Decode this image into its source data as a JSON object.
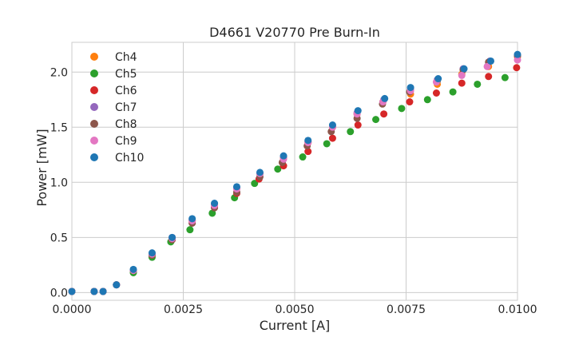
{
  "chart_data": {
    "type": "scatter",
    "title": "D4661 V20770 Pre Burn-In",
    "xlabel": "Current [A]",
    "ylabel": "Power [mW]",
    "xlim": [
      0.0,
      0.01
    ],
    "ylim": [
      -0.07,
      2.27
    ],
    "xticks": [
      0.0,
      0.0025,
      0.005,
      0.0075,
      0.01
    ],
    "xtick_labels": [
      "0.0000",
      "0.0025",
      "0.0050",
      "0.0075",
      "0.0100"
    ],
    "yticks": [
      0.0,
      0.5,
      1.0,
      1.5,
      2.0
    ],
    "ytick_labels": [
      "0.0",
      "0.5",
      "1.0",
      "1.5",
      "2.0"
    ],
    "grid": true,
    "legend_position": "top-left",
    "series": [
      {
        "name": "Ch4",
        "color": "#ff7f0e",
        "x": [
          0.0,
          0.0005,
          0.0007,
          0.001,
          0.00138,
          0.0018,
          0.00225,
          0.0027,
          0.0032,
          0.0037,
          0.00422,
          0.00475,
          0.0053,
          0.00585,
          0.0064,
          0.00698,
          0.0076,
          0.0082,
          0.00875,
          0.00935,
          0.01
        ],
        "y": [
          0.01,
          0.01,
          0.01,
          0.07,
          0.2,
          0.34,
          0.49,
          0.65,
          0.8,
          0.95,
          1.08,
          1.22,
          1.36,
          1.5,
          1.62,
          1.73,
          1.8,
          1.89,
          1.98,
          2.05,
          2.14
        ]
      },
      {
        "name": "Ch5",
        "color": "#2ca02c",
        "x": [
          0.0,
          0.0005,
          0.0007,
          0.001,
          0.00138,
          0.0018,
          0.00222,
          0.00265,
          0.00315,
          0.00365,
          0.0041,
          0.00462,
          0.00518,
          0.00572,
          0.00625,
          0.00682,
          0.0074,
          0.00798,
          0.00855,
          0.0091,
          0.00972
        ],
        "y": [
          0.01,
          0.01,
          0.01,
          0.07,
          0.18,
          0.32,
          0.46,
          0.57,
          0.72,
          0.86,
          0.99,
          1.12,
          1.23,
          1.35,
          1.46,
          1.57,
          1.67,
          1.75,
          1.82,
          1.89,
          1.95
        ]
      },
      {
        "name": "Ch6",
        "color": "#d62728",
        "x": [
          0.0,
          0.0005,
          0.0007,
          0.001,
          0.00138,
          0.0018,
          0.00225,
          0.0027,
          0.0032,
          0.0037,
          0.0042,
          0.00475,
          0.0053,
          0.00585,
          0.00642,
          0.007,
          0.00758,
          0.00818,
          0.00875,
          0.00935,
          0.00998
        ],
        "y": [
          0.01,
          0.01,
          0.01,
          0.07,
          0.2,
          0.34,
          0.48,
          0.63,
          0.77,
          0.9,
          1.03,
          1.15,
          1.28,
          1.4,
          1.52,
          1.62,
          1.73,
          1.81,
          1.9,
          1.96,
          2.04
        ]
      },
      {
        "name": "Ch7",
        "color": "#9467bd",
        "x": [
          0.0,
          0.0005,
          0.0007,
          0.001,
          0.00138,
          0.0018,
          0.00225,
          0.0027,
          0.0032,
          0.0037,
          0.00422,
          0.00475,
          0.0053,
          0.00585,
          0.0064,
          0.007,
          0.0076,
          0.0082,
          0.00878,
          0.00938,
          0.01
        ],
        "y": [
          0.01,
          0.01,
          0.01,
          0.07,
          0.2,
          0.35,
          0.5,
          0.66,
          0.8,
          0.95,
          1.08,
          1.23,
          1.37,
          1.51,
          1.63,
          1.75,
          1.85,
          1.93,
          2.03,
          2.1,
          2.15
        ]
      },
      {
        "name": "Ch8",
        "color": "#8c564b",
        "x": [
          0.0,
          0.0005,
          0.0007,
          0.001,
          0.00138,
          0.0018,
          0.00225,
          0.0027,
          0.0032,
          0.0037,
          0.00422,
          0.00472,
          0.00528,
          0.00582,
          0.0064,
          0.00697,
          0.00758,
          0.0082,
          0.00878,
          0.00935,
          0.01
        ],
        "y": [
          0.01,
          0.01,
          0.01,
          0.07,
          0.2,
          0.34,
          0.48,
          0.63,
          0.77,
          0.91,
          1.05,
          1.18,
          1.33,
          1.46,
          1.58,
          1.71,
          1.82,
          1.92,
          2.02,
          2.09,
          2.15
        ]
      },
      {
        "name": "Ch9",
        "color": "#e377c2",
        "x": [
          0.0,
          0.0005,
          0.0007,
          0.001,
          0.00138,
          0.0018,
          0.00225,
          0.0027,
          0.0032,
          0.0037,
          0.00422,
          0.00475,
          0.0053,
          0.00585,
          0.0064,
          0.00698,
          0.0076,
          0.00818,
          0.00875,
          0.00932,
          0.01
        ],
        "y": [
          0.01,
          0.01,
          0.01,
          0.07,
          0.2,
          0.35,
          0.49,
          0.65,
          0.79,
          0.94,
          1.08,
          1.21,
          1.36,
          1.5,
          1.62,
          1.73,
          1.83,
          1.91,
          1.97,
          2.05,
          2.11
        ]
      },
      {
        "name": "Ch10",
        "color": "#1f77b4",
        "x": [
          0.0,
          0.0005,
          0.0007,
          0.001,
          0.00138,
          0.0018,
          0.00225,
          0.0027,
          0.0032,
          0.0037,
          0.00422,
          0.00475,
          0.0053,
          0.00585,
          0.00642,
          0.00702,
          0.0076,
          0.00822,
          0.0088,
          0.0094,
          0.01
        ],
        "y": [
          0.01,
          0.01,
          0.01,
          0.07,
          0.21,
          0.36,
          0.5,
          0.67,
          0.81,
          0.96,
          1.09,
          1.24,
          1.38,
          1.52,
          1.65,
          1.76,
          1.86,
          1.94,
          2.03,
          2.1,
          2.16
        ]
      }
    ]
  }
}
